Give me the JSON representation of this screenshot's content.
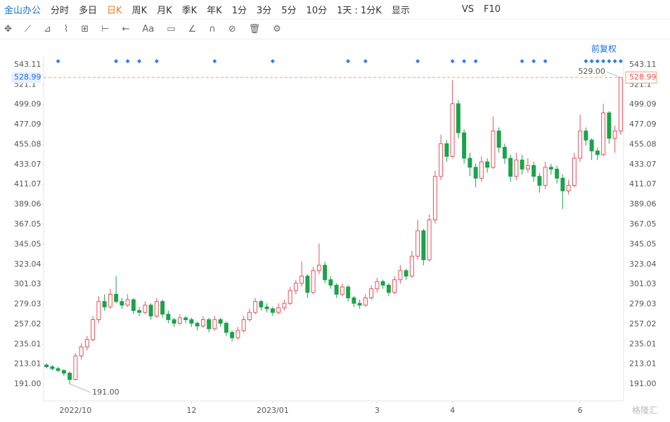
{
  "toolbar": {
    "stock": "金山办公",
    "periods": [
      "分时",
      "多日",
      "日K",
      "周K",
      "月K",
      "季K",
      "年K",
      "1分",
      "3分",
      "5分",
      "10分",
      "1天 : 1分K"
    ],
    "display": "显示",
    "vs": "VS",
    "f10": "F10",
    "font_tool": "Aa"
  },
  "adjust": "前复权",
  "watermark": "格隆汇",
  "chart_data": {
    "type": "candlestick",
    "candles": [
      [
        212,
        214,
        208,
        210
      ],
      [
        210,
        212,
        206,
        208
      ],
      [
        208,
        210,
        204,
        206
      ],
      [
        206,
        207,
        200,
        203
      ],
      [
        203,
        205,
        191,
        196
      ],
      [
        196,
        225,
        195,
        222
      ],
      [
        222,
        236,
        218,
        232
      ],
      [
        232,
        244,
        228,
        240
      ],
      [
        240,
        266,
        238,
        262
      ],
      [
        262,
        288,
        258,
        282
      ],
      [
        282,
        290,
        272,
        276
      ],
      [
        276,
        296,
        274,
        290
      ],
      [
        290,
        310,
        280,
        282
      ],
      [
        282,
        286,
        274,
        278
      ],
      [
        278,
        290,
        276,
        284
      ],
      [
        284,
        286,
        268,
        272
      ],
      [
        272,
        276,
        266,
        270
      ],
      [
        270,
        282,
        268,
        278
      ],
      [
        278,
        280,
        262,
        266
      ],
      [
        266,
        286,
        264,
        282
      ],
      [
        282,
        284,
        264,
        268
      ],
      [
        268,
        272,
        258,
        262
      ],
      [
        262,
        264,
        254,
        258
      ],
      [
        258,
        268,
        256,
        264
      ],
      [
        264,
        266,
        258,
        262
      ],
      [
        262,
        264,
        254,
        258
      ],
      [
        258,
        260,
        250,
        255
      ],
      [
        255,
        266,
        253,
        262
      ],
      [
        262,
        264,
        248,
        252
      ],
      [
        252,
        266,
        250,
        262
      ],
      [
        262,
        264,
        254,
        258
      ],
      [
        258,
        260,
        244,
        248
      ],
      [
        248,
        250,
        238,
        242
      ],
      [
        242,
        254,
        240,
        250
      ],
      [
        250,
        266,
        248,
        262
      ],
      [
        262,
        274,
        260,
        270
      ],
      [
        270,
        286,
        268,
        282
      ],
      [
        282,
        284,
        272,
        276
      ],
      [
        276,
        280,
        270,
        274
      ],
      [
        274,
        276,
        266,
        270
      ],
      [
        270,
        280,
        268,
        275
      ],
      [
        275,
        284,
        272,
        280
      ],
      [
        280,
        298,
        278,
        294
      ],
      [
        294,
        306,
        290,
        302
      ],
      [
        302,
        326,
        298,
        310
      ],
      [
        310,
        312,
        286,
        292
      ],
      [
        292,
        320,
        290,
        316
      ],
      [
        316,
        346,
        312,
        322
      ],
      [
        322,
        326,
        302,
        306
      ],
      [
        306,
        310,
        296,
        300
      ],
      [
        300,
        302,
        286,
        290
      ],
      [
        290,
        302,
        288,
        298
      ],
      [
        298,
        300,
        282,
        286
      ],
      [
        286,
        288,
        276,
        280
      ],
      [
        280,
        284,
        274,
        278
      ],
      [
        278,
        290,
        276,
        286
      ],
      [
        286,
        300,
        284,
        296
      ],
      [
        296,
        308,
        292,
        304
      ],
      [
        304,
        306,
        296,
        300
      ],
      [
        300,
        302,
        288,
        292
      ],
      [
        292,
        310,
        290,
        306
      ],
      [
        306,
        322,
        302,
        316
      ],
      [
        316,
        318,
        306,
        310
      ],
      [
        310,
        338,
        308,
        332
      ],
      [
        332,
        372,
        328,
        360
      ],
      [
        360,
        362,
        322,
        328
      ],
      [
        328,
        378,
        326,
        372
      ],
      [
        372,
        426,
        368,
        420
      ],
      [
        420,
        466,
        416,
        456
      ],
      [
        456,
        460,
        436,
        442
      ],
      [
        442,
        526,
        440,
        500
      ],
      [
        500,
        504,
        462,
        468
      ],
      [
        468,
        472,
        434,
        440
      ],
      [
        440,
        446,
        420,
        430
      ],
      [
        430,
        434,
        408,
        418
      ],
      [
        418,
        442,
        414,
        436
      ],
      [
        436,
        440,
        424,
        430
      ],
      [
        430,
        486,
        428,
        470
      ],
      [
        470,
        474,
        446,
        452
      ],
      [
        452,
        456,
        434,
        440
      ],
      [
        440,
        444,
        414,
        420
      ],
      [
        420,
        446,
        416,
        438
      ],
      [
        438,
        444,
        422,
        428
      ],
      [
        428,
        440,
        424,
        432
      ],
      [
        432,
        436,
        414,
        420
      ],
      [
        420,
        424,
        402,
        410
      ],
      [
        410,
        436,
        406,
        430
      ],
      [
        430,
        434,
        422,
        428
      ],
      [
        428,
        432,
        412,
        418
      ],
      [
        418,
        422,
        384,
        404
      ],
      [
        404,
        416,
        400,
        410
      ],
      [
        410,
        446,
        408,
        440
      ],
      [
        440,
        488,
        436,
        470
      ],
      [
        470,
        474,
        454,
        460
      ],
      [
        460,
        462,
        438,
        448
      ],
      [
        448,
        452,
        438,
        444
      ],
      [
        444,
        500,
        442,
        490
      ],
      [
        490,
        492,
        456,
        462
      ],
      [
        462,
        476,
        446,
        470
      ],
      [
        470,
        529,
        466,
        528.99
      ]
    ],
    "up_color": "#e8505b",
    "down_color": "#1aa34a",
    "ylim": [
      172.4,
      552.4
    ],
    "yticks": [
      543.11,
      521.1,
      499.09,
      477.09,
      455.08,
      433.07,
      411.07,
      389.06,
      367.05,
      345.05,
      323.04,
      301.03,
      279.03,
      257.02,
      235.01,
      213.01,
      {
        "value": 191,
        "label": "191.00"
      }
    ],
    "xlim": [
      -0.5,
      99.5
    ],
    "xticks": [
      {
        "value": 5,
        "label": "2022/10"
      },
      {
        "value": 25,
        "label": "12"
      },
      {
        "value": 39,
        "label": "2023/01"
      },
      {
        "value": 57,
        "label": "3"
      },
      {
        "value": 70,
        "label": "4"
      },
      {
        "value": 92,
        "label": "6"
      }
    ],
    "max_label": {
      "value": 529,
      "label": "529.00"
    },
    "min_label": {
      "value": 191,
      "label": "191.00"
    }
  }
}
